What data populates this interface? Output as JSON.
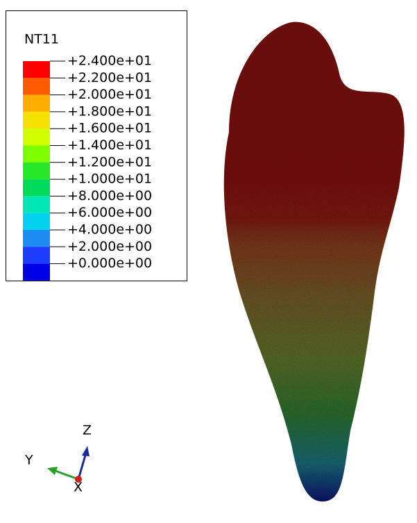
{
  "legend": {
    "title": "NT11",
    "labels": [
      "+2.400e+01",
      "+2.200e+01",
      "+2.000e+01",
      "+1.800e+01",
      "+1.600e+01",
      "+1.400e+01",
      "+1.200e+01",
      "+1.000e+01",
      "+8.000e+00",
      "+6.000e+00",
      "+4.000e+00",
      "+2.000e+00",
      "+0.000e+00"
    ],
    "colors": [
      "#ff0000",
      "#ff5a00",
      "#ffae00",
      "#f5e100",
      "#d2ff00",
      "#7dff00",
      "#28e628",
      "#00dc5a",
      "#00e6b4",
      "#00d2f0",
      "#1e8cf0",
      "#1e3cff",
      "#0000e6"
    ]
  },
  "triad": {
    "z": "Z",
    "y": "Y",
    "x": "X"
  }
}
